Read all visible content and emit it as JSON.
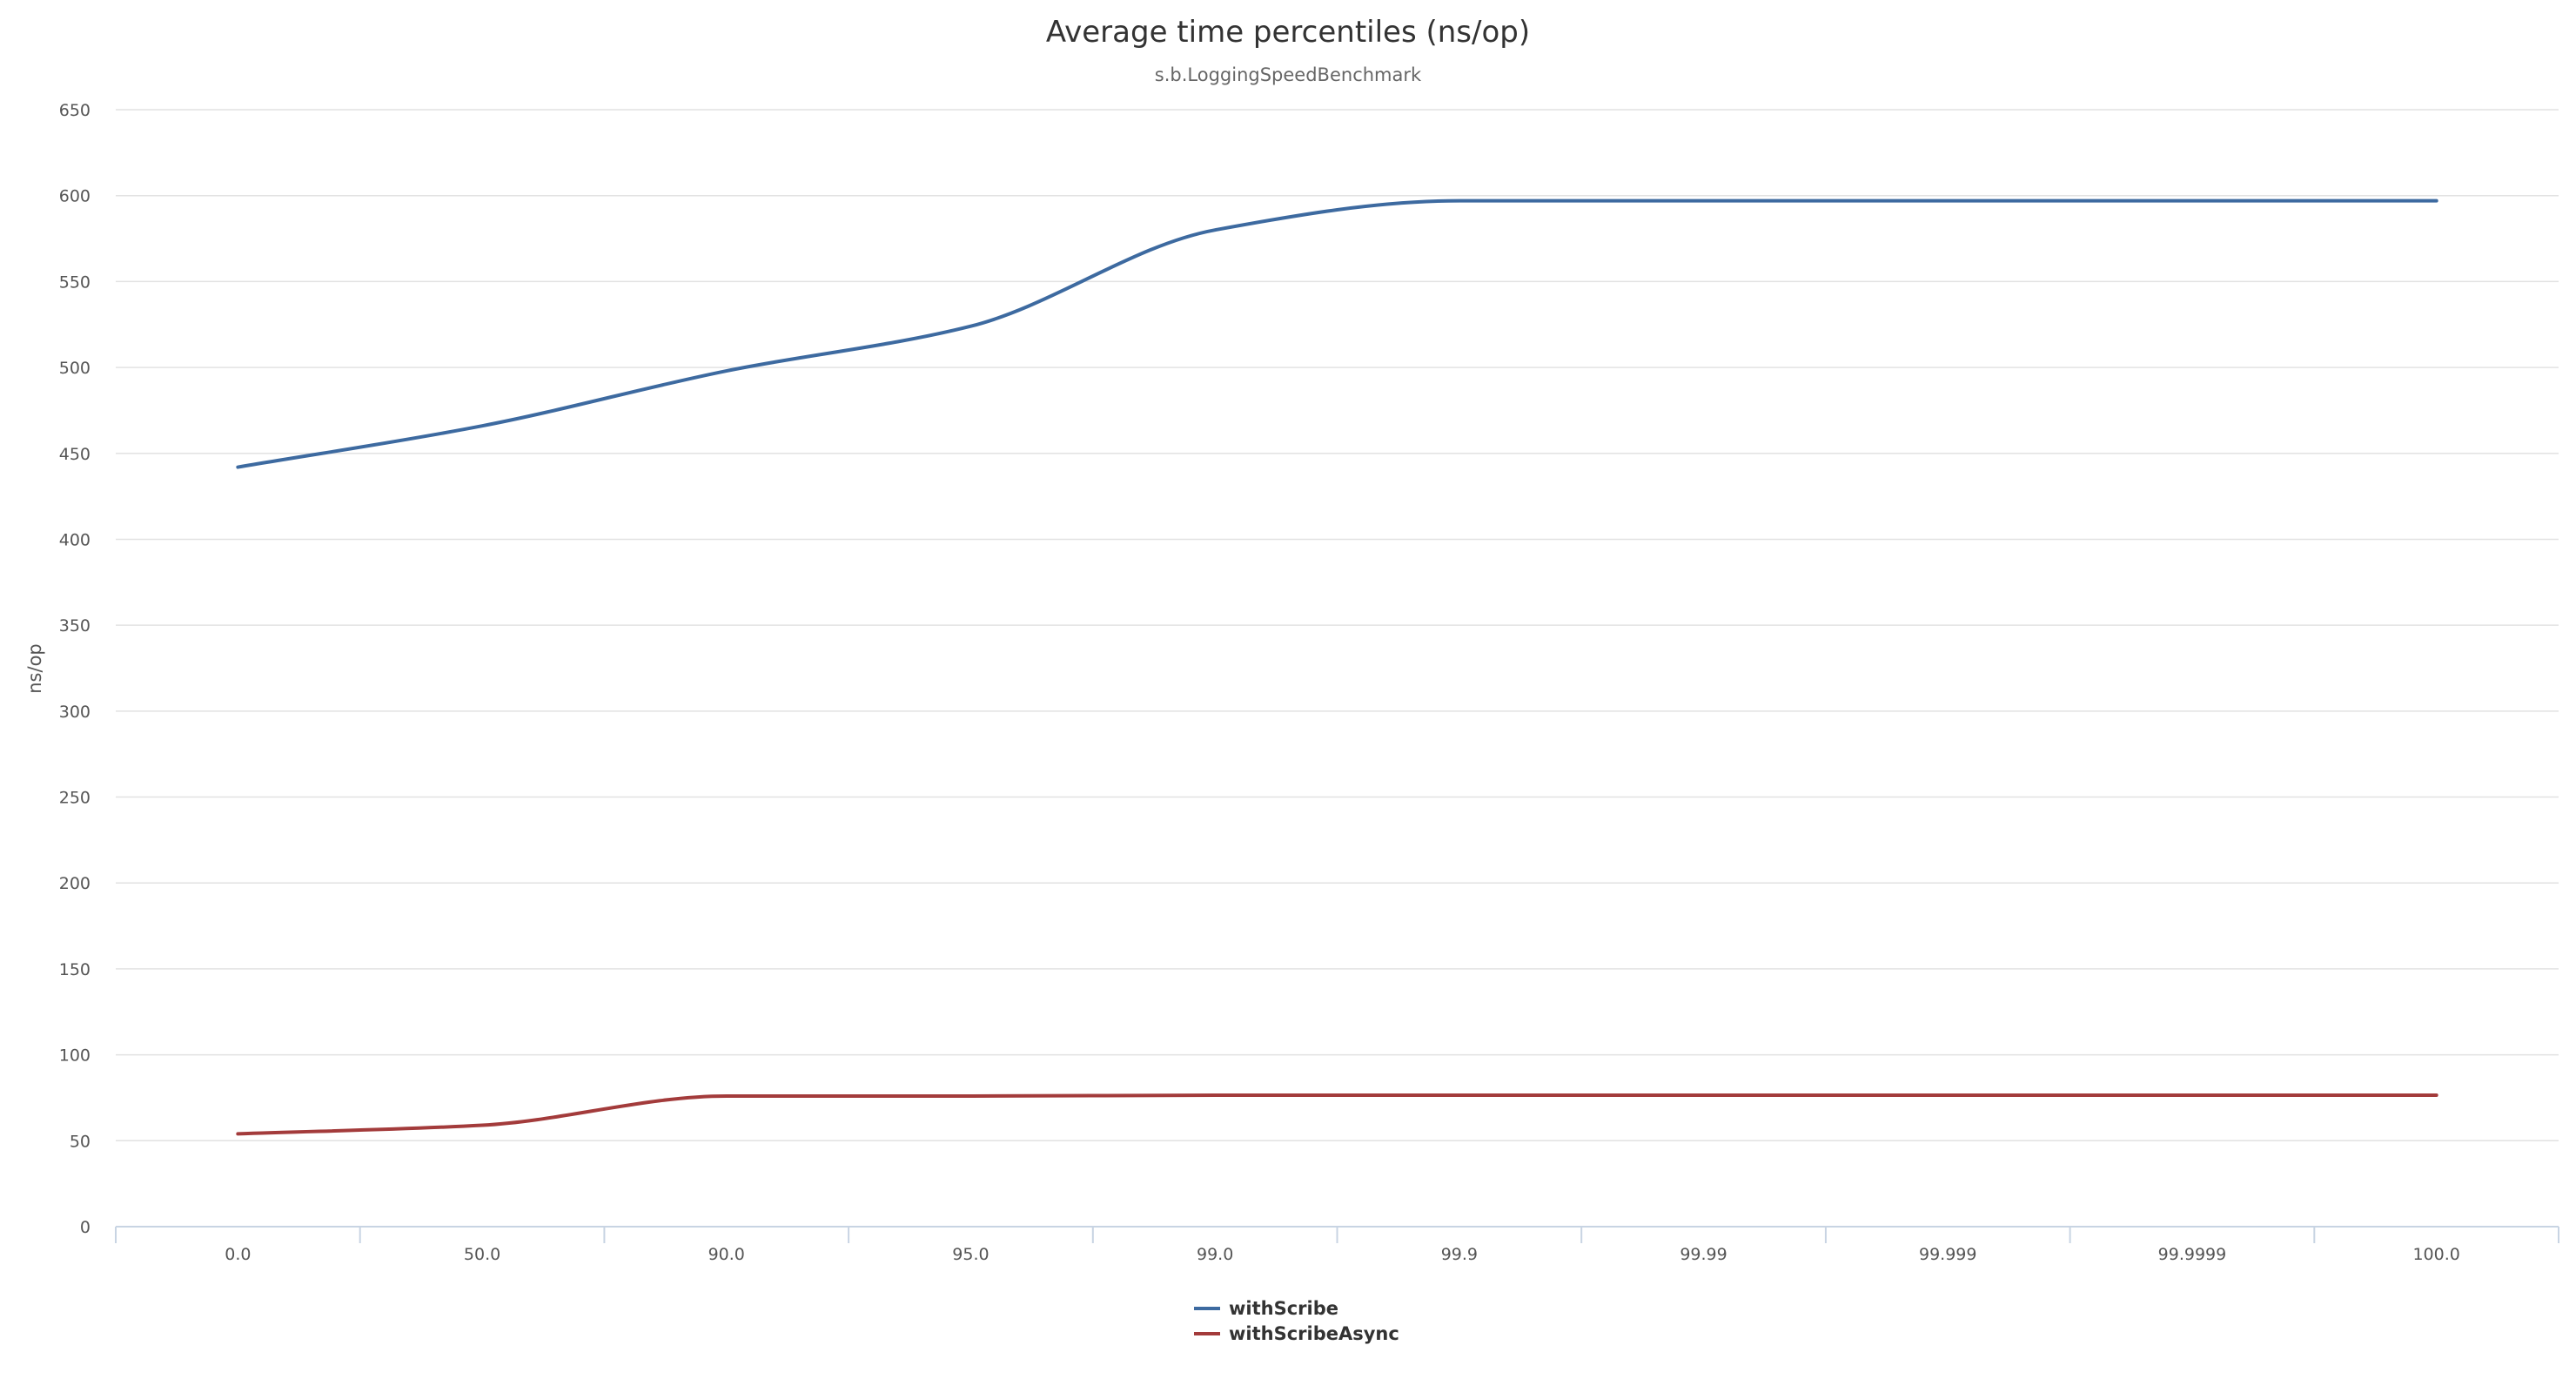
{
  "chart_data": {
    "type": "line",
    "title": "Average time percentiles (ns/op)",
    "subtitle": "s.b.LoggingSpeedBenchmark",
    "xlabel": "",
    "ylabel": "ns/op",
    "categories": [
      "0.0",
      "50.0",
      "90.0",
      "95.0",
      "99.0",
      "99.9",
      "99.99",
      "99.999",
      "99.9999",
      "100.0"
    ],
    "y_ticks": [
      "0",
      "50",
      "100",
      "150",
      "200",
      "250",
      "300",
      "350",
      "400",
      "450",
      "500",
      "550",
      "600",
      "650"
    ],
    "ylim": [
      0,
      650
    ],
    "grid": true,
    "legend_position": "bottom-center",
    "series": [
      {
        "name": "withScribe",
        "color": "#3d6aa0",
        "values": [
          442,
          466,
          498,
          524,
          580,
          597,
          597,
          597,
          597,
          597
        ]
      },
      {
        "name": "withScribeAsync",
        "color": "#a33b3b",
        "values": [
          54,
          59,
          76,
          76,
          76.5,
          76.5,
          76.5,
          76.5,
          76.5,
          76.5
        ]
      }
    ]
  }
}
